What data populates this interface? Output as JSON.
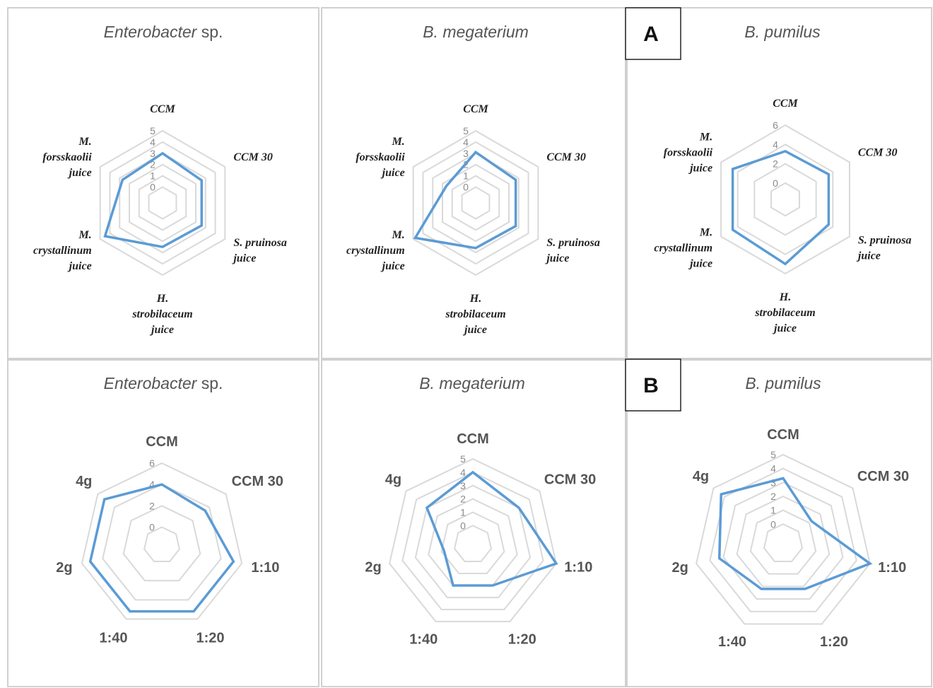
{
  "panel_labels": {
    "A": "A",
    "B": "B"
  },
  "colors": {
    "series": "#5b9bd5",
    "grid": "#d9d9d9",
    "frame": "#d0d0d0"
  },
  "chart_data": [
    {
      "type": "radar",
      "group": "A",
      "title_italic": "Enterobacter",
      "title_plain": " sp.",
      "categories": [
        [
          "CCM"
        ],
        [
          "CCM 30"
        ],
        [
          "S. pruinosa",
          "juice"
        ],
        [
          "H.",
          "strobilaceum",
          "juice"
        ],
        [
          "M.",
          "crystallinum",
          "juice"
        ],
        [
          "M.",
          "forsskaolii",
          "juice"
        ]
      ],
      "ticks": [
        "0",
        "1",
        "2",
        "3",
        "4",
        "5"
      ],
      "rmax": 5,
      "values": [
        3.0,
        2.6,
        2.6,
        2.5,
        4.5,
        2.7
      ]
    },
    {
      "type": "radar",
      "group": "A",
      "title_italic": "B. megaterium",
      "title_plain": "",
      "categories": [
        [
          "CCM"
        ],
        [
          "CCM 30"
        ],
        [
          "S. pruinosa",
          "juice"
        ],
        [
          "H.",
          "strobilaceum",
          "juice"
        ],
        [
          "M.",
          "crystallinum",
          "juice"
        ],
        [
          "M.",
          "forsskaolii",
          "juice"
        ]
      ],
      "ticks": [
        "0",
        "1",
        "2",
        "3",
        "4",
        "5"
      ],
      "rmax": 5,
      "values": [
        3.1,
        2.7,
        2.7,
        2.6,
        4.8,
        1.6
      ]
    },
    {
      "type": "radar",
      "group": "A",
      "title_italic": "B. pumilus",
      "title_plain": "",
      "categories": [
        [
          "CCM"
        ],
        [
          "CCM 30"
        ],
        [
          "S. pruinosa",
          "juice"
        ],
        [
          "H.",
          "strobilaceum",
          "juice"
        ],
        [
          "M.",
          "crystallinum",
          "juice"
        ],
        [
          "M.",
          "forsskaolii",
          "juice"
        ]
      ],
      "ticks": [
        "0",
        "2",
        "4",
        "6"
      ],
      "rmax": 6,
      "values": [
        3.3,
        3.5,
        3.5,
        5.0,
        4.6,
        4.6
      ]
    },
    {
      "type": "radar",
      "group": "B",
      "title_italic": "Enterobacter",
      "title_plain": " sp.",
      "categories": [
        [
          "CCM"
        ],
        [
          "CCM 30"
        ],
        [
          "1:10"
        ],
        [
          "1:20"
        ],
        [
          "1:40"
        ],
        [
          "2g"
        ],
        [
          "4g"
        ]
      ],
      "ticks": [
        "0",
        "2",
        "4",
        "6"
      ],
      "rmax": 6,
      "values": [
        4.0,
        3.5,
        5.2,
        5.2,
        5.2,
        5.2,
        5.2
      ]
    },
    {
      "type": "radar",
      "group": "B",
      "title_italic": "B. megaterium",
      "title_plain": "",
      "categories": [
        [
          "CCM"
        ],
        [
          "CCM 30"
        ],
        [
          "1:10"
        ],
        [
          "1:20"
        ],
        [
          "1:40"
        ],
        [
          "2g"
        ],
        [
          "4g"
        ]
      ],
      "ticks": [
        "0",
        "1",
        "2",
        "3",
        "4",
        "5"
      ],
      "rmax": 5,
      "values": [
        4.0,
        3.0,
        5.0,
        2.0,
        2.0,
        0.8,
        3.0
      ]
    },
    {
      "type": "radar",
      "group": "B",
      "title_italic": "B. pumilus",
      "title_plain": "",
      "categories": [
        [
          "CCM"
        ],
        [
          "CCM 30"
        ],
        [
          "1:10"
        ],
        [
          "1:20"
        ],
        [
          "1:40"
        ],
        [
          "2g"
        ],
        [
          "4g"
        ]
      ],
      "ticks": [
        "0",
        "1",
        "2",
        "3",
        "4",
        "5"
      ],
      "rmax": 5,
      "values": [
        3.3,
        1.2,
        5.0,
        2.2,
        2.2,
        3.3,
        4.3
      ]
    }
  ]
}
